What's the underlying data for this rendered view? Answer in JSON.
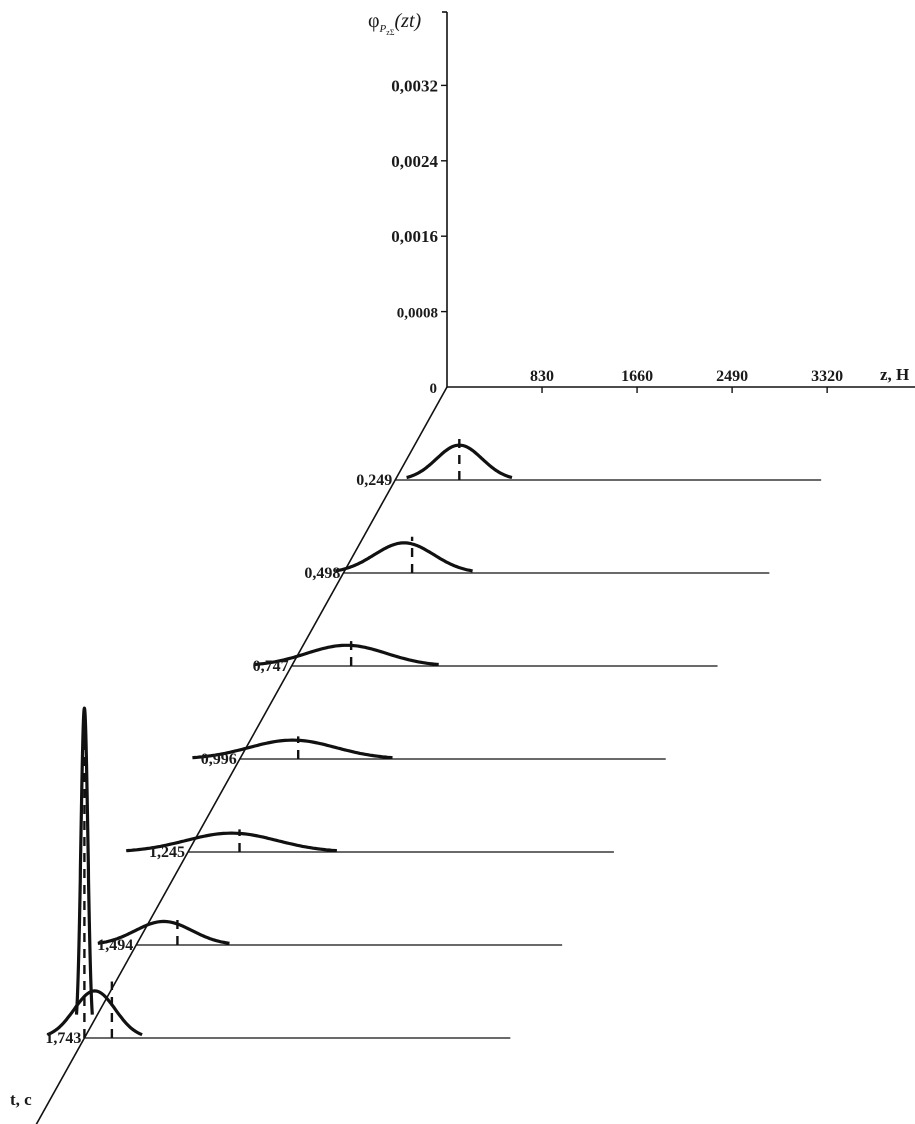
{
  "chart_data": {
    "type": "line",
    "title": "",
    "ylabel": "φ",
    "ylabel_subscript": "P",
    "ylabel_sub2": "zΣ",
    "ylabel_arg": "(zt)",
    "xlabel": "z, H",
    "tlabel": "t, c",
    "y_axis": {
      "ticks": [
        "0",
        "0,0008",
        "0,0016",
        "0,0024",
        "0,0032"
      ],
      "values": [
        0,
        0.0008,
        0.0016,
        0.0024,
        0.0032
      ]
    },
    "x_axis": {
      "ticks": [
        "830",
        "1660",
        "2490",
        "3320"
      ],
      "values": [
        830,
        1660,
        2490,
        3320
      ]
    },
    "t_axis": {
      "ticks": [
        "0,249",
        "0,498",
        "0,747",
        "0,996",
        "1,245",
        "1,494",
        "1,743"
      ],
      "values": [
        0.249,
        0.498,
        0.747,
        0.996,
        1.245,
        1.494,
        1.743
      ]
    },
    "series": [
      {
        "t": 0.249,
        "mean_z": 560,
        "std_z": 200,
        "peak": 0.00037
      },
      {
        "t": 0.498,
        "mean_z": 530,
        "std_z": 260,
        "peak": 0.00032
      },
      {
        "t": 0.747,
        "mean_z": 480,
        "std_z": 350,
        "peak": 0.00022
      },
      {
        "t": 0.996,
        "mean_z": 460,
        "std_z": 380,
        "peak": 0.0002
      },
      {
        "t": 1.245,
        "mean_z": 380,
        "std_z": 400,
        "peak": 0.0002
      },
      {
        "t": 1.494,
        "mean_z": 240,
        "std_z": 250,
        "peak": 0.00025
      },
      {
        "t": 1.743,
        "mean_z": 90,
        "std_z": 180,
        "peak": 0.0005
      }
    ],
    "extra_series": {
      "t": 1.743,
      "mean_z": 0,
      "std_z": 30,
      "peak": 0.0035
    },
    "dashed_means_z": [
      560,
      600,
      520,
      510,
      450,
      360,
      240,
      0
    ],
    "grid": false,
    "legend": "none"
  }
}
